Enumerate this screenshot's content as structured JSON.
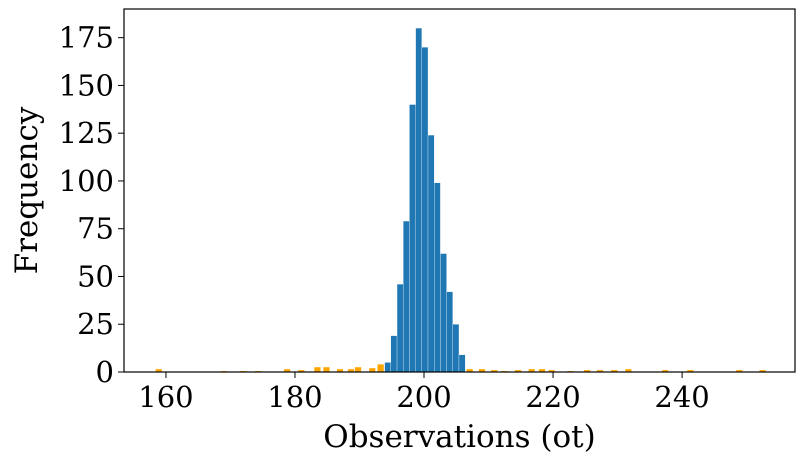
{
  "chart_data": {
    "type": "bar",
    "xlabel": "Observations (ot)",
    "ylabel": "Frequency",
    "xlim": [
      153.5,
      257.5
    ],
    "ylim": [
      0,
      190
    ],
    "x_ticks": [
      160,
      180,
      200,
      220,
      240
    ],
    "y_ticks": [
      0,
      25,
      50,
      75,
      100,
      125,
      150,
      175
    ],
    "grid": false,
    "series": [
      {
        "color": "#1f77b4",
        "bin_width": 0.96,
        "bins": [
          {
            "x": 193.9,
            "y": 5
          },
          {
            "x": 194.86,
            "y": 19
          },
          {
            "x": 195.82,
            "y": 46
          },
          {
            "x": 196.78,
            "y": 79
          },
          {
            "x": 197.74,
            "y": 140
          },
          {
            "x": 198.7,
            "y": 180
          },
          {
            "x": 199.66,
            "y": 170
          },
          {
            "x": 200.62,
            "y": 124
          },
          {
            "x": 201.58,
            "y": 99
          },
          {
            "x": 202.54,
            "y": 62
          },
          {
            "x": 203.5,
            "y": 42
          },
          {
            "x": 204.46,
            "y": 25
          },
          {
            "x": 205.42,
            "y": 9
          }
        ]
      },
      {
        "color": "#ffa500",
        "bin_width": 0.96,
        "bins": [
          {
            "x": 158.4,
            "y": 1.5
          },
          {
            "x": 168.5,
            "y": 0.5
          },
          {
            "x": 171.5,
            "y": 0.5
          },
          {
            "x": 173.8,
            "y": 0.5
          },
          {
            "x": 178.3,
            "y": 1.5
          },
          {
            "x": 180.5,
            "y": 1
          },
          {
            "x": 183.0,
            "y": 2.5
          },
          {
            "x": 184.4,
            "y": 2.5
          },
          {
            "x": 186.5,
            "y": 1.5
          },
          {
            "x": 188.2,
            "y": 1.5
          },
          {
            "x": 189.3,
            "y": 2.5
          },
          {
            "x": 191.5,
            "y": 2
          },
          {
            "x": 192.8,
            "y": 4
          },
          {
            "x": 206.6,
            "y": 1.5
          },
          {
            "x": 208.5,
            "y": 1.5
          },
          {
            "x": 210.4,
            "y": 1
          },
          {
            "x": 212.0,
            "y": 0.5
          },
          {
            "x": 214.1,
            "y": 1
          },
          {
            "x": 216.2,
            "y": 1.5
          },
          {
            "x": 217.8,
            "y": 1.5
          },
          {
            "x": 219.3,
            "y": 1
          },
          {
            "x": 222.2,
            "y": 0.5
          },
          {
            "x": 224.8,
            "y": 1
          },
          {
            "x": 226.8,
            "y": 1
          },
          {
            "x": 229.0,
            "y": 1
          },
          {
            "x": 231.2,
            "y": 1.5
          },
          {
            "x": 236.9,
            "y": 1
          },
          {
            "x": 240.8,
            "y": 1
          },
          {
            "x": 248.4,
            "y": 1
          },
          {
            "x": 252.0,
            "y": 1
          }
        ]
      }
    ]
  }
}
